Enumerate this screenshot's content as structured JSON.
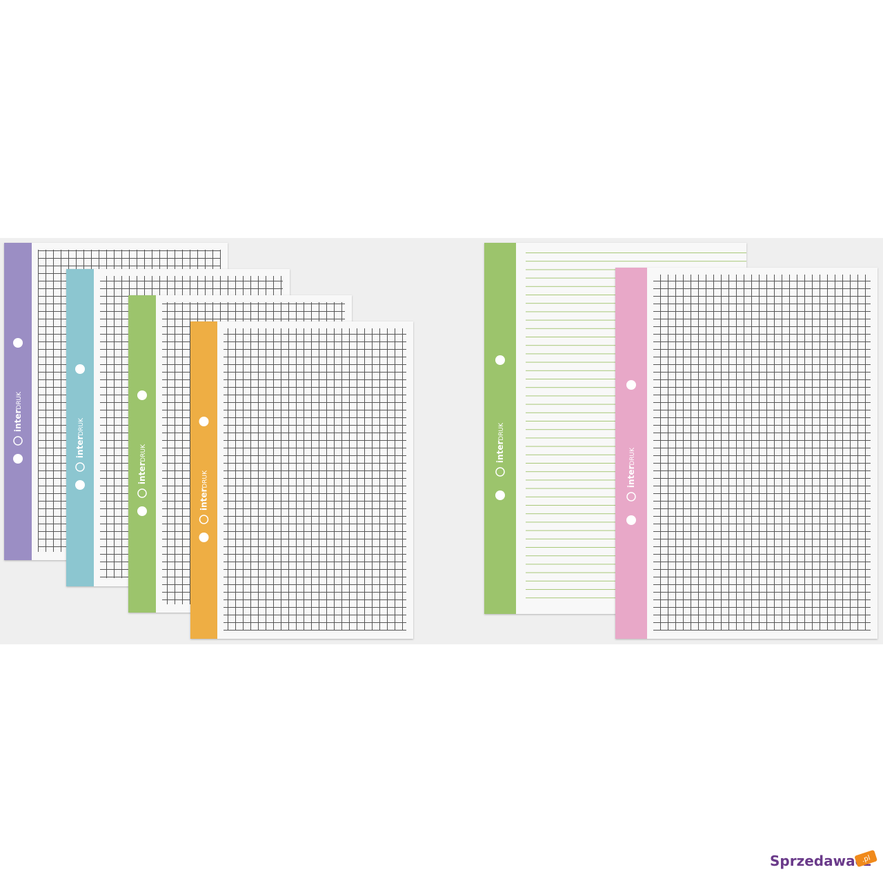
{
  "sheets": [
    {
      "logo_bold": "inter",
      "logo_light": "DRUK"
    },
    {
      "logo_bold": "inter",
      "logo_light": "DRUK"
    },
    {
      "logo_bold": "inter",
      "logo_light": "DRUK"
    },
    {
      "logo_bold": "inter",
      "logo_light": "DRUK"
    },
    {
      "logo_bold": "inter",
      "logo_light": "DRUK"
    },
    {
      "logo_bold": "inter",
      "logo_light": "DRUK"
    }
  ],
  "watermark": {
    "name": "Sprzedawacz",
    "tld": ".pl"
  }
}
